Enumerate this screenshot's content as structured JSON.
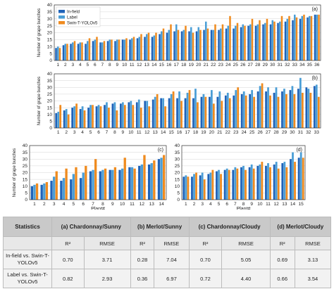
{
  "chart_data": [
    {
      "type": "bar",
      "panel_label": "(a)",
      "ylabel": "Number of grape bunches",
      "xlabel": "",
      "ylim": [
        0,
        40
      ],
      "yticks": [
        0,
        5,
        10,
        15,
        20,
        25,
        30,
        35,
        40
      ],
      "categories": [
        "1",
        "2",
        "3",
        "4",
        "5",
        "6",
        "7",
        "8",
        "9",
        "10",
        "11",
        "12",
        "13",
        "14",
        "15",
        "16",
        "17",
        "18",
        "19",
        "20",
        "21",
        "22",
        "23",
        "24",
        "25",
        "26",
        "27",
        "28",
        "29",
        "30",
        "31",
        "32",
        "33",
        "34",
        "35",
        "36"
      ],
      "series": [
        {
          "name": "In-field",
          "values": [
            9,
            11,
            12,
            12,
            12,
            14,
            13,
            14,
            14,
            15,
            15,
            16,
            17,
            17,
            19,
            20,
            21,
            21,
            21,
            21,
            22,
            22,
            22,
            23,
            23,
            24,
            25,
            25,
            26,
            26,
            27,
            28,
            29,
            30,
            31,
            33
          ]
        },
        {
          "name": "Label",
          "values": [
            10,
            12,
            13,
            13,
            14,
            15,
            13,
            15,
            15,
            15,
            16,
            17,
            19,
            18,
            21,
            22,
            26,
            22,
            24,
            24,
            28,
            22,
            23,
            25,
            25,
            26,
            26,
            26,
            27,
            29,
            28,
            30,
            33,
            32,
            32,
            33
          ]
        },
        {
          "name": "Swin-T-YOLOv5",
          "values": [
            9,
            12,
            14,
            13,
            16,
            17,
            14,
            15,
            15,
            16,
            17,
            19,
            20,
            20,
            23,
            26,
            22,
            25,
            20,
            22,
            23,
            26,
            26,
            32,
            27,
            25,
            30,
            29,
            30,
            28,
            32,
            32,
            31,
            33,
            32,
            33
          ]
        }
      ],
      "legend": [
        "In-field",
        "Label",
        "Swin-T-YOLOv5"
      ],
      "colors": [
        "#1f62b8",
        "#4b9ed6",
        "#ef8b1f"
      ]
    },
    {
      "type": "bar",
      "panel_label": "(b)",
      "ylabel": "Number of grape bunches",
      "xlabel": "",
      "ylim": [
        0,
        40
      ],
      "yticks": [
        0,
        5,
        10,
        15,
        20,
        25,
        30,
        35,
        40
      ],
      "categories": [
        "1",
        "2",
        "3",
        "4",
        "5",
        "6",
        "7",
        "8",
        "9",
        "10",
        "11",
        "12",
        "13",
        "14",
        "15",
        "16",
        "17",
        "18",
        "19",
        "20",
        "21",
        "22",
        "23",
        "24",
        "25",
        "26",
        "27",
        "28",
        "29",
        "30",
        "31",
        "32",
        "33"
      ],
      "series": [
        {
          "name": "In-field",
          "values": [
            11,
            13,
            15,
            14,
            15,
            16,
            17,
            18,
            18,
            19,
            19,
            20,
            21,
            22,
            22,
            22,
            22,
            22,
            23,
            23,
            23,
            24,
            24,
            25,
            25,
            27,
            27,
            26,
            27,
            28,
            29,
            30,
            31
          ]
        },
        {
          "name": "Label",
          "values": [
            12,
            14,
            16,
            16,
            17,
            17,
            19,
            19,
            19,
            20,
            21,
            20,
            23,
            22,
            25,
            27,
            26,
            29,
            25,
            28,
            27,
            26,
            28,
            27,
            28,
            31,
            30,
            30,
            29,
            31,
            37,
            29,
            32
          ]
        },
        {
          "name": "Swin-T-YOLOv5",
          "values": [
            17,
            10,
            18,
            13,
            17,
            16,
            15,
            13,
            17,
            17,
            15,
            16,
            25,
            16,
            27,
            20,
            28,
            19,
            23,
            18,
            20,
            22,
            30,
            24,
            23,
            33,
            24,
            23,
            25,
            25,
            26,
            26,
            23
          ]
        }
      ],
      "colors": [
        "#1f62b8",
        "#4b9ed6",
        "#ef8b1f"
      ]
    },
    {
      "type": "bar",
      "panel_label": "(c)",
      "ylabel": "Number of grape bunches",
      "xlabel": "Plant#",
      "ylim": [
        0,
        40
      ],
      "yticks": [
        0,
        5,
        10,
        15,
        20,
        25,
        30,
        35,
        40
      ],
      "categories": [
        "1",
        "2",
        "3",
        "4",
        "5",
        "6",
        "7",
        "8",
        "9",
        "10",
        "11",
        "12",
        "13",
        "14"
      ],
      "series": [
        {
          "name": "In-field",
          "values": [
            10,
            11,
            14,
            14,
            15,
            16,
            21,
            21,
            22,
            22,
            24,
            25,
            26,
            30
          ]
        },
        {
          "name": "Label",
          "values": [
            11,
            12,
            17,
            16,
            19,
            20,
            22,
            22,
            22,
            23,
            24,
            26,
            27,
            31
          ]
        },
        {
          "name": "Swin-T-YOLOv5",
          "values": [
            12,
            13,
            21,
            23,
            24,
            25,
            30,
            23,
            24,
            31,
            23,
            33,
            29,
            33
          ]
        }
      ],
      "colors": [
        "#1f62b8",
        "#4b9ed6",
        "#ef8b1f"
      ]
    },
    {
      "type": "bar",
      "panel_label": "(d)",
      "ylabel": "",
      "xlabel": "Plant#",
      "ylim": [
        0,
        40
      ],
      "yticks": [
        0,
        5,
        10,
        15,
        20,
        25,
        30,
        35,
        40
      ],
      "categories": [
        "1",
        "2",
        "3",
        "4",
        "5",
        "6",
        "7",
        "8",
        "9",
        "10",
        "11",
        "12",
        "13",
        "14",
        "15"
      ],
      "series": [
        {
          "name": "In-field",
          "values": [
            17,
            17,
            18,
            19,
            21,
            22,
            22,
            24,
            24,
            25,
            25,
            26,
            27,
            30,
            31
          ]
        },
        {
          "name": "Label",
          "values": [
            18,
            19,
            20,
            20,
            22,
            23,
            24,
            25,
            26,
            26,
            27,
            28,
            28,
            35,
            35
          ]
        },
        {
          "name": "Swin-T-YOLOv5",
          "values": [
            17,
            20,
            15,
            22,
            19,
            22,
            23,
            22,
            23,
            28,
            24,
            23,
            24,
            28,
            31
          ]
        }
      ],
      "colors": [
        "#1f62b8",
        "#4b9ed6",
        "#ef8b1f"
      ]
    }
  ],
  "stats_table": {
    "corner": "Statistics",
    "groups": [
      "(a) Chardonnay/Sunny",
      "(b) Merlot/Sunny",
      "(c) Chardonnay/Cloudy",
      "(d) Merlot/Cloudy"
    ],
    "subheaders": [
      "R²",
      "RMSE",
      "R²",
      "RMSE",
      "R²",
      "RMSE",
      "R²",
      "RMSE"
    ],
    "rows": [
      {
        "label": "In-field vs. Swin-T-YOLOv5",
        "values": [
          "0.70",
          "3.71",
          "0.28",
          "7.04",
          "0.70",
          "5.05",
          "0.69",
          "3.13"
        ]
      },
      {
        "label": "Label vs. Swin-T-YOLOv5",
        "values": [
          "0.82",
          "2.93",
          "0.36",
          "6.97",
          "0.72",
          "4.40",
          "0.66",
          "3.54"
        ]
      }
    ]
  }
}
